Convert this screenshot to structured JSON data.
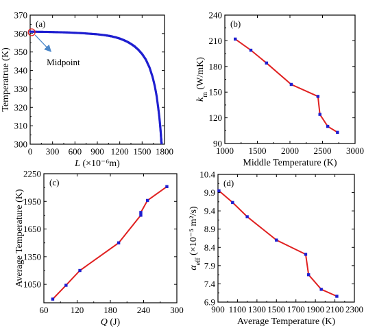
{
  "chart_data": [
    {
      "panel": "(a)",
      "type": "scatter",
      "xlabel_main": "L",
      "xlabel_unit": "(×10⁻⁶m)",
      "ylabel": "Temperatrue (K)",
      "xlim": [
        0,
        1800
      ],
      "ylim": [
        300,
        370
      ],
      "xticks": [
        0,
        300,
        600,
        900,
        1200,
        1500,
        1800
      ],
      "yticks": [
        300,
        310,
        320,
        330,
        340,
        350,
        360,
        370
      ],
      "series_color": "#1f1fd0",
      "annotation": {
        "text": "Midpoint",
        "x": 20,
        "y": 360.7,
        "marker_color": "#e02020",
        "arrow_color": "#4a86c8"
      },
      "x": [
        0,
        100,
        200,
        300,
        400,
        500,
        600,
        700,
        800,
        900,
        1000,
        1050,
        1100,
        1150,
        1200,
        1250,
        1300,
        1350,
        1400,
        1450,
        1500,
        1550,
        1600,
        1640,
        1670,
        1695,
        1715,
        1730,
        1742,
        1750,
        1755,
        1758,
        1760
      ],
      "y": [
        361,
        360.95,
        360.9,
        360.8,
        360.7,
        360.6,
        360.4,
        360.2,
        359.9,
        359.6,
        359.1,
        358.8,
        358.4,
        357.9,
        357.3,
        356.5,
        355.6,
        354.4,
        353,
        351.2,
        348.9,
        345.9,
        341.5,
        336.5,
        331.5,
        326,
        320,
        315,
        310,
        306,
        303,
        301.5,
        300.5
      ]
    },
    {
      "panel": "(b)",
      "type": "line",
      "xlabel": "Middle Temperature (K)",
      "ylabel_main": "k",
      "ylabel_sub": "m",
      "ylabel_unit": " (W/mK)",
      "xlim": [
        1000,
        3000
      ],
      "ylim": [
        90,
        240
      ],
      "xticks": [
        1000,
        1500,
        2000,
        2500,
        3000
      ],
      "yticks": [
        90,
        120,
        150,
        180,
        210,
        240
      ],
      "line_color": "#e02020",
      "marker_color": "#1f1fd0",
      "x": [
        1160,
        1400,
        1640,
        2020,
        2430,
        2460,
        2580,
        2730
      ],
      "y": [
        212,
        199,
        184,
        159,
        145,
        124,
        110,
        103
      ]
    },
    {
      "panel": "(c)",
      "type": "line",
      "xlabel_main": "Q",
      "xlabel_unit": " (J)",
      "ylabel": "Average Temperature (K)",
      "xlim": [
        60,
        300
      ],
      "ylim": [
        850,
        2250
      ],
      "xticks": [
        60,
        120,
        180,
        240,
        300
      ],
      "yticks": [
        1050,
        1350,
        1650,
        1950,
        2250
      ],
      "line_color": "#e02020",
      "marker_color": "#1f1fd0",
      "x": [
        76,
        100,
        125,
        195,
        235,
        235,
        247,
        282
      ],
      "y": [
        890,
        1040,
        1200,
        1500,
        1800,
        1830,
        1960,
        2110
      ]
    },
    {
      "panel": "(d)",
      "type": "line",
      "xlabel": "Average Temperature (K)",
      "ylabel_main": "α",
      "ylabel_sub": "eff",
      "ylabel_unit": " (×10⁻⁵ m²/s)",
      "xlim": [
        900,
        2300
      ],
      "ylim": [
        6.9,
        10.4
      ],
      "xticks": [
        900,
        1300,
        1700,
        2100
      ],
      "xtick_labels_visible": [
        900,
        1100,
        1300,
        1500,
        1700,
        1900,
        2100,
        2300
      ],
      "yticks": [
        6.9,
        7.4,
        7.9,
        8.4,
        8.9,
        9.4,
        9.9,
        10.4
      ],
      "line_color": "#e02020",
      "marker_color": "#1f1fd0",
      "x": [
        910,
        1050,
        1200,
        1500,
        1800,
        1830,
        1960,
        2120
      ],
      "y": [
        9.95,
        9.63,
        9.24,
        8.6,
        8.21,
        7.65,
        7.25,
        7.06
      ]
    }
  ]
}
